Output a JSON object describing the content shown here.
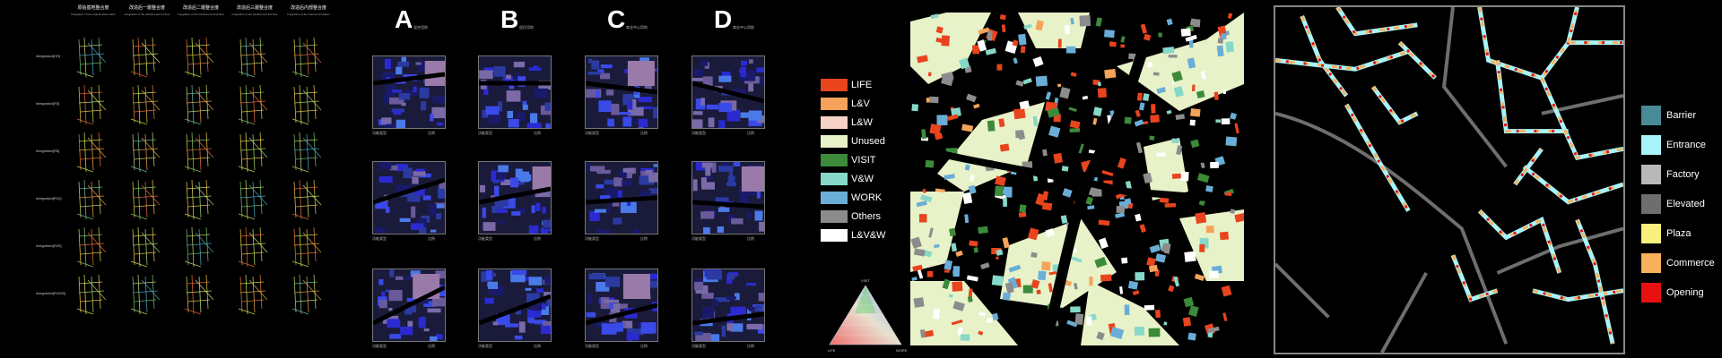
{
  "panel1": {
    "headers": [
      {
        "title": "原始基地整合度",
        "sub": "Integration of the original urban fabric"
      },
      {
        "title": "改造后一層整合度",
        "sub": "Integration of the transformed 1st floor"
      },
      {
        "title": "改造后二層整合度",
        "sub": "Integration of the transformed 2nd floor"
      },
      {
        "title": "改造后三層整合度",
        "sub": "Integration of the transformed 3rd floor"
      },
      {
        "title": "改造后内部整合度",
        "sub": "Integration of the internal circulation"
      }
    ],
    "rows": [
      "Integration[HH]",
      "Integration[R3]",
      "Integration[R5]",
      "Integration[R10]",
      "Integration[R20]",
      "Integration[R1000]"
    ]
  },
  "panel2": {
    "columns": [
      {
        "letter": "A",
        "sub": "混合用地"
      },
      {
        "letter": "B",
        "sub": "居住用地"
      },
      {
        "letter": "C",
        "sub": "商业中心用地"
      },
      {
        "letter": "D",
        "sub": "商业中心用地"
      }
    ],
    "caption_left": "功能类型",
    "caption_right": "比例"
  },
  "panel3": {
    "legend": [
      {
        "label": "LIFE",
        "color": "#e8441e"
      },
      {
        "label": "L&V",
        "color": "#f5a35a"
      },
      {
        "label": "L&W",
        "color": "#f7d2c8"
      },
      {
        "label": "Unused",
        "color": "#e8f2c8"
      },
      {
        "label": "VISIT",
        "color": "#3c8a3a"
      },
      {
        "label": "V&W",
        "color": "#86d8c8"
      },
      {
        "label": "WORK",
        "color": "#6aaed8"
      },
      {
        "label": "Others",
        "color": "#8c8c8c"
      },
      {
        "label": "L&V&W",
        "color": "#ffffff"
      }
    ],
    "triangle": {
      "top": "VISIT",
      "left": "LIFE",
      "right": "WORK"
    }
  },
  "panel4": {
    "legend": [
      {
        "label": "Barrier",
        "color": "#4a8a96"
      },
      {
        "label": "Entrance",
        "color": "#a8f4f8"
      },
      {
        "label": "Factory",
        "color": "#b8b8b8"
      },
      {
        "label": "Elevated",
        "color": "#6e6e6e"
      },
      {
        "label": "Plaza",
        "color": "#f8f07a"
      },
      {
        "label": "Commerce",
        "color": "#f8b05a"
      },
      {
        "label": "Opening",
        "color": "#e81010"
      }
    ]
  }
}
